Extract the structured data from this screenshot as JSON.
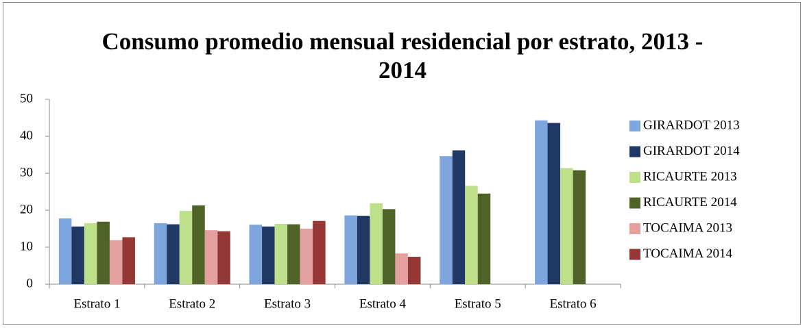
{
  "chart_data": {
    "type": "bar",
    "title": "Consumo promedio mensual residencial por estrato, 2013 - 2014",
    "categories": [
      "Estrato 1",
      "Estrato 2",
      "Estrato 3",
      "Estrato 4",
      "Estrato 5",
      "Estrato 6"
    ],
    "series": [
      {
        "name": "GIRARDOT 2013",
        "color": "#7ea6dc",
        "values": [
          17.8,
          16.5,
          16.1,
          18.6,
          34.6,
          44.3
        ]
      },
      {
        "name": "GIRARDOT 2014",
        "color": "#1f3864",
        "values": [
          15.6,
          16.2,
          15.6,
          18.5,
          36.2,
          43.6
        ]
      },
      {
        "name": "RICAURTE 2013",
        "color": "#bfe08a",
        "values": [
          16.5,
          19.8,
          16.3,
          21.9,
          26.6,
          31.4
        ]
      },
      {
        "name": "RICAURTE 2014",
        "color": "#4f6228",
        "values": [
          16.9,
          21.3,
          16.2,
          20.3,
          24.5,
          30.8
        ]
      },
      {
        "name": "TOCAIMA 2013",
        "color": "#e3a09e",
        "values": [
          11.9,
          14.6,
          15.0,
          8.3,
          null,
          null
        ]
      },
      {
        "name": "TOCAIMA 2014",
        "color": "#953735",
        "values": [
          12.7,
          14.3,
          17.1,
          7.4,
          null,
          null
        ]
      }
    ],
    "ylim": [
      0,
      50
    ],
    "yticks": [
      0,
      10,
      20,
      30,
      40,
      50
    ],
    "grid": false,
    "legend": "right"
  }
}
